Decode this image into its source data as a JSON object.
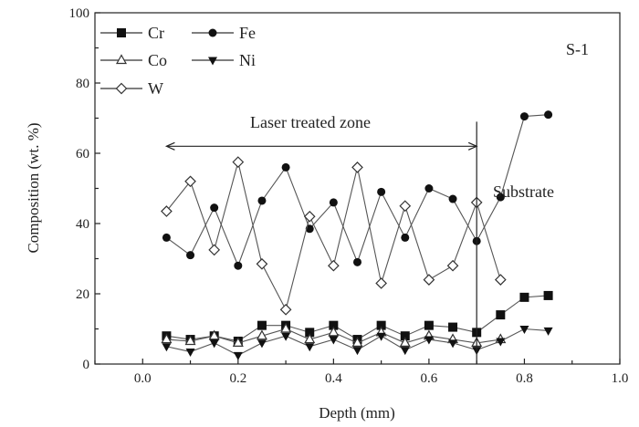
{
  "chart_data": {
    "type": "line",
    "xlabel": "Depth (mm)",
    "ylabel": "Composition (wt. %)",
    "xlim": [
      -0.1,
      1.0
    ],
    "ylim": [
      0,
      100
    ],
    "xticks": [
      "0.0",
      "0.2",
      "0.4",
      "0.6",
      "0.8",
      "1.0"
    ],
    "xtick_values": [
      0,
      0.2,
      0.4,
      0.6,
      0.8,
      1.0
    ],
    "yticks": [
      "0",
      "20",
      "40",
      "60",
      "80",
      "100"
    ],
    "ytick_values": [
      0,
      20,
      40,
      60,
      80,
      100
    ],
    "legend_placement": "top-left",
    "series": [
      {
        "name": "Cr",
        "marker": "square-filled",
        "x": [
          0.05,
          0.1,
          0.15,
          0.2,
          0.25,
          0.3,
          0.35,
          0.4,
          0.45,
          0.5,
          0.55,
          0.6,
          0.65,
          0.7,
          0.75,
          0.8,
          0.85
        ],
        "values": [
          8,
          7,
          8,
          6.5,
          11,
          11,
          9,
          11,
          7,
          11,
          8,
          11,
          10.5,
          9,
          14,
          19,
          19.5
        ]
      },
      {
        "name": "Fe",
        "marker": "circle-filled",
        "x": [
          0.05,
          0.1,
          0.15,
          0.2,
          0.25,
          0.3,
          0.35,
          0.4,
          0.45,
          0.5,
          0.55,
          0.6,
          0.65,
          0.7,
          0.75,
          0.8,
          0.85
        ],
        "values": [
          36,
          31,
          44.5,
          28,
          46.5,
          56,
          38.5,
          46,
          29,
          49,
          36,
          50,
          47,
          35,
          47.5,
          70.5,
          71
        ]
      },
      {
        "name": "Co",
        "marker": "triangle-up-open",
        "x": [
          0.05,
          0.1,
          0.15,
          0.2,
          0.25,
          0.3,
          0.35,
          0.4,
          0.45,
          0.5,
          0.55,
          0.6,
          0.65,
          0.7,
          0.75
        ],
        "values": [
          7,
          6.5,
          8,
          6,
          8,
          10,
          7,
          9,
          6,
          9,
          6,
          8,
          7,
          6,
          7
        ]
      },
      {
        "name": "Ni",
        "marker": "triangle-down-filled",
        "x": [
          0.05,
          0.1,
          0.15,
          0.2,
          0.25,
          0.3,
          0.35,
          0.4,
          0.45,
          0.5,
          0.55,
          0.6,
          0.65,
          0.7,
          0.75,
          0.8,
          0.85
        ],
        "values": [
          5,
          3.5,
          6,
          2.5,
          6,
          8,
          5,
          7,
          4,
          8,
          4,
          7,
          6,
          4,
          6.5,
          10,
          9.5
        ]
      },
      {
        "name": "W",
        "marker": "diamond-open",
        "x": [
          0.05,
          0.1,
          0.15,
          0.2,
          0.25,
          0.3,
          0.35,
          0.4,
          0.45,
          0.5,
          0.55,
          0.6,
          0.65,
          0.7,
          0.75
        ],
        "values": [
          43.5,
          52,
          32.5,
          57.5,
          28.5,
          15.5,
          42,
          28,
          56,
          23,
          45,
          24,
          28,
          46,
          24
        ]
      }
    ],
    "annotations": {
      "sample": "S-1",
      "zone": "Laser treated zone",
      "zone_range": [
        0.05,
        0.7
      ],
      "zone_arrow_y": 62,
      "boundary_x": 0.7,
      "boundary_top": 69,
      "substrate": "Substrate"
    }
  }
}
